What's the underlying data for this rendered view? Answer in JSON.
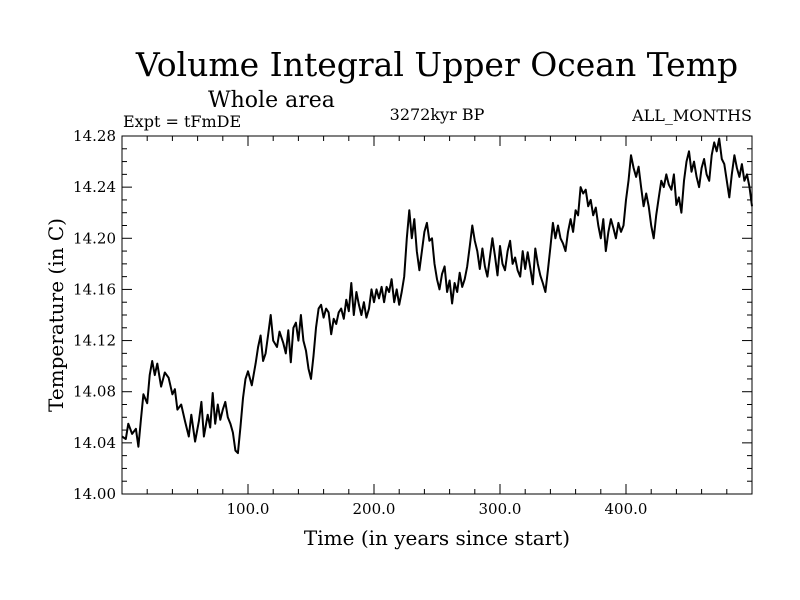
{
  "chart_data": {
    "type": "line",
    "title": "Volume Integral Upper Ocean Temp",
    "subtitle": "Whole area",
    "header_left": "Expt = tFmDE",
    "header_center": "3272kyr BP",
    "header_right": "ALL_MONTHS",
    "xlabel": "Time (in years since start)",
    "ylabel": "Temperature (in C)",
    "xlim": [
      0,
      500
    ],
    "ylim": [
      14.0,
      14.28
    ],
    "xticks": [
      100,
      200,
      300,
      400
    ],
    "xtick_labels": [
      "100.0",
      "200.0",
      "300.0",
      "400.0"
    ],
    "yticks": [
      14.0,
      14.04,
      14.08,
      14.12,
      14.16,
      14.2,
      14.24,
      14.28
    ],
    "ytick_labels": [
      "14.00",
      "14.04",
      "14.08",
      "14.12",
      "14.16",
      "14.20",
      "14.24",
      "14.28"
    ],
    "series": [
      {
        "name": "Volume integral upper ocean temperature",
        "points": [
          [
            0,
            14.045
          ],
          [
            3,
            14.043
          ],
          [
            5,
            14.055
          ],
          [
            8,
            14.047
          ],
          [
            11,
            14.051
          ],
          [
            13,
            14.037
          ],
          [
            15,
            14.058
          ],
          [
            17,
            14.078
          ],
          [
            20,
            14.071
          ],
          [
            22,
            14.093
          ],
          [
            24,
            14.104
          ],
          [
            26,
            14.093
          ],
          [
            28,
            14.102
          ],
          [
            31,
            14.084
          ],
          [
            34,
            14.095
          ],
          [
            37,
            14.091
          ],
          [
            40,
            14.078
          ],
          [
            42,
            14.082
          ],
          [
            44,
            14.066
          ],
          [
            47,
            14.07
          ],
          [
            50,
            14.057
          ],
          [
            53,
            14.045
          ],
          [
            55,
            14.062
          ],
          [
            58,
            14.041
          ],
          [
            61,
            14.057
          ],
          [
            63,
            14.072
          ],
          [
            65,
            14.045
          ],
          [
            68,
            14.062
          ],
          [
            70,
            14.052
          ],
          [
            72,
            14.079
          ],
          [
            74,
            14.055
          ],
          [
            76,
            14.07
          ],
          [
            78,
            14.058
          ],
          [
            80,
            14.066
          ],
          [
            82,
            14.072
          ],
          [
            84,
            14.06
          ],
          [
            86,
            14.055
          ],
          [
            88,
            14.048
          ],
          [
            90,
            14.034
          ],
          [
            92,
            14.032
          ],
          [
            94,
            14.052
          ],
          [
            96,
            14.075
          ],
          [
            98,
            14.09
          ],
          [
            100,
            14.096
          ],
          [
            103,
            14.085
          ],
          [
            106,
            14.102
          ],
          [
            108,
            14.115
          ],
          [
            110,
            14.124
          ],
          [
            112,
            14.104
          ],
          [
            114,
            14.11
          ],
          [
            116,
            14.125
          ],
          [
            118,
            14.14
          ],
          [
            120,
            14.12
          ],
          [
            123,
            14.115
          ],
          [
            125,
            14.127
          ],
          [
            128,
            14.118
          ],
          [
            130,
            14.11
          ],
          [
            132,
            14.128
          ],
          [
            134,
            14.103
          ],
          [
            136,
            14.13
          ],
          [
            138,
            14.134
          ],
          [
            140,
            14.12
          ],
          [
            142,
            14.14
          ],
          [
            144,
            14.12
          ],
          [
            146,
            14.112
          ],
          [
            148,
            14.098
          ],
          [
            150,
            14.09
          ],
          [
            152,
            14.108
          ],
          [
            154,
            14.13
          ],
          [
            156,
            14.145
          ],
          [
            158,
            14.148
          ],
          [
            160,
            14.138
          ],
          [
            162,
            14.145
          ],
          [
            164,
            14.142
          ],
          [
            166,
            14.125
          ],
          [
            168,
            14.137
          ],
          [
            170,
            14.133
          ],
          [
            172,
            14.142
          ],
          [
            174,
            14.145
          ],
          [
            176,
            14.137
          ],
          [
            178,
            14.152
          ],
          [
            180,
            14.143
          ],
          [
            182,
            14.165
          ],
          [
            184,
            14.14
          ],
          [
            186,
            14.158
          ],
          [
            188,
            14.148
          ],
          [
            190,
            14.14
          ],
          [
            192,
            14.15
          ],
          [
            194,
            14.138
          ],
          [
            196,
            14.145
          ],
          [
            198,
            14.16
          ],
          [
            200,
            14.15
          ],
          [
            202,
            14.16
          ],
          [
            204,
            14.153
          ],
          [
            206,
            14.162
          ],
          [
            208,
            14.15
          ],
          [
            210,
            14.162
          ],
          [
            212,
            14.158
          ],
          [
            214,
            14.168
          ],
          [
            216,
            14.15
          ],
          [
            218,
            14.16
          ],
          [
            220,
            14.148
          ],
          [
            222,
            14.158
          ],
          [
            224,
            14.17
          ],
          [
            226,
            14.2
          ],
          [
            228,
            14.222
          ],
          [
            230,
            14.2
          ],
          [
            232,
            14.215
          ],
          [
            234,
            14.19
          ],
          [
            236,
            14.175
          ],
          [
            238,
            14.19
          ],
          [
            240,
            14.205
          ],
          [
            242,
            14.212
          ],
          [
            244,
            14.198
          ],
          [
            246,
            14.2
          ],
          [
            248,
            14.18
          ],
          [
            250,
            14.168
          ],
          [
            252,
            14.16
          ],
          [
            254,
            14.172
          ],
          [
            256,
            14.178
          ],
          [
            258,
            14.158
          ],
          [
            260,
            14.167
          ],
          [
            262,
            14.149
          ],
          [
            264,
            14.165
          ],
          [
            266,
            14.158
          ],
          [
            268,
            14.173
          ],
          [
            270,
            14.162
          ],
          [
            272,
            14.168
          ],
          [
            274,
            14.178
          ],
          [
            276,
            14.194
          ],
          [
            278,
            14.21
          ],
          [
            280,
            14.198
          ],
          [
            282,
            14.19
          ],
          [
            284,
            14.176
          ],
          [
            286,
            14.192
          ],
          [
            288,
            14.178
          ],
          [
            290,
            14.17
          ],
          [
            292,
            14.185
          ],
          [
            294,
            14.2
          ],
          [
            296,
            14.186
          ],
          [
            298,
            14.171
          ],
          [
            300,
            14.194
          ],
          [
            302,
            14.18
          ],
          [
            304,
            14.175
          ],
          [
            306,
            14.19
          ],
          [
            308,
            14.198
          ],
          [
            310,
            14.18
          ],
          [
            312,
            14.185
          ],
          [
            314,
            14.175
          ],
          [
            316,
            14.17
          ],
          [
            318,
            14.19
          ],
          [
            320,
            14.176
          ],
          [
            322,
            14.189
          ],
          [
            324,
            14.177
          ],
          [
            326,
            14.164
          ],
          [
            328,
            14.192
          ],
          [
            330,
            14.18
          ],
          [
            332,
            14.171
          ],
          [
            334,
            14.165
          ],
          [
            336,
            14.158
          ],
          [
            338,
            14.175
          ],
          [
            340,
            14.193
          ],
          [
            342,
            14.212
          ],
          [
            344,
            14.2
          ],
          [
            346,
            14.21
          ],
          [
            348,
            14.2
          ],
          [
            350,
            14.196
          ],
          [
            352,
            14.19
          ],
          [
            354,
            14.205
          ],
          [
            356,
            14.215
          ],
          [
            358,
            14.205
          ],
          [
            360,
            14.222
          ],
          [
            362,
            14.218
          ],
          [
            364,
            14.24
          ],
          [
            366,
            14.235
          ],
          [
            368,
            14.238
          ],
          [
            370,
            14.225
          ],
          [
            372,
            14.23
          ],
          [
            374,
            14.218
          ],
          [
            376,
            14.224
          ],
          [
            378,
            14.21
          ],
          [
            380,
            14.2
          ],
          [
            382,
            14.215
          ],
          [
            384,
            14.19
          ],
          [
            386,
            14.205
          ],
          [
            388,
            14.215
          ],
          [
            390,
            14.208
          ],
          [
            392,
            14.2
          ],
          [
            394,
            14.212
          ],
          [
            396,
            14.205
          ],
          [
            398,
            14.21
          ],
          [
            400,
            14.23
          ],
          [
            402,
            14.245
          ],
          [
            404,
            14.265
          ],
          [
            406,
            14.255
          ],
          [
            408,
            14.248
          ],
          [
            410,
            14.256
          ],
          [
            412,
            14.24
          ],
          [
            414,
            14.225
          ],
          [
            416,
            14.235
          ],
          [
            418,
            14.225
          ],
          [
            420,
            14.21
          ],
          [
            422,
            14.2
          ],
          [
            424,
            14.218
          ],
          [
            426,
            14.232
          ],
          [
            428,
            14.245
          ],
          [
            430,
            14.24
          ],
          [
            432,
            14.25
          ],
          [
            434,
            14.242
          ],
          [
            436,
            14.238
          ],
          [
            438,
            14.25
          ],
          [
            440,
            14.226
          ],
          [
            442,
            14.232
          ],
          [
            444,
            14.22
          ],
          [
            446,
            14.245
          ],
          [
            448,
            14.26
          ],
          [
            450,
            14.268
          ],
          [
            452,
            14.252
          ],
          [
            454,
            14.26
          ],
          [
            456,
            14.248
          ],
          [
            458,
            14.24
          ],
          [
            460,
            14.255
          ],
          [
            462,
            14.262
          ],
          [
            464,
            14.25
          ],
          [
            466,
            14.245
          ],
          [
            468,
            14.265
          ],
          [
            470,
            14.275
          ],
          [
            472,
            14.268
          ],
          [
            474,
            14.278
          ],
          [
            476,
            14.262
          ],
          [
            478,
            14.258
          ],
          [
            480,
            14.245
          ],
          [
            482,
            14.232
          ],
          [
            484,
            14.25
          ],
          [
            486,
            14.265
          ],
          [
            488,
            14.255
          ],
          [
            490,
            14.248
          ],
          [
            492,
            14.258
          ],
          [
            494,
            14.245
          ],
          [
            496,
            14.25
          ],
          [
            498,
            14.24
          ],
          [
            500,
            14.225
          ]
        ]
      }
    ]
  }
}
